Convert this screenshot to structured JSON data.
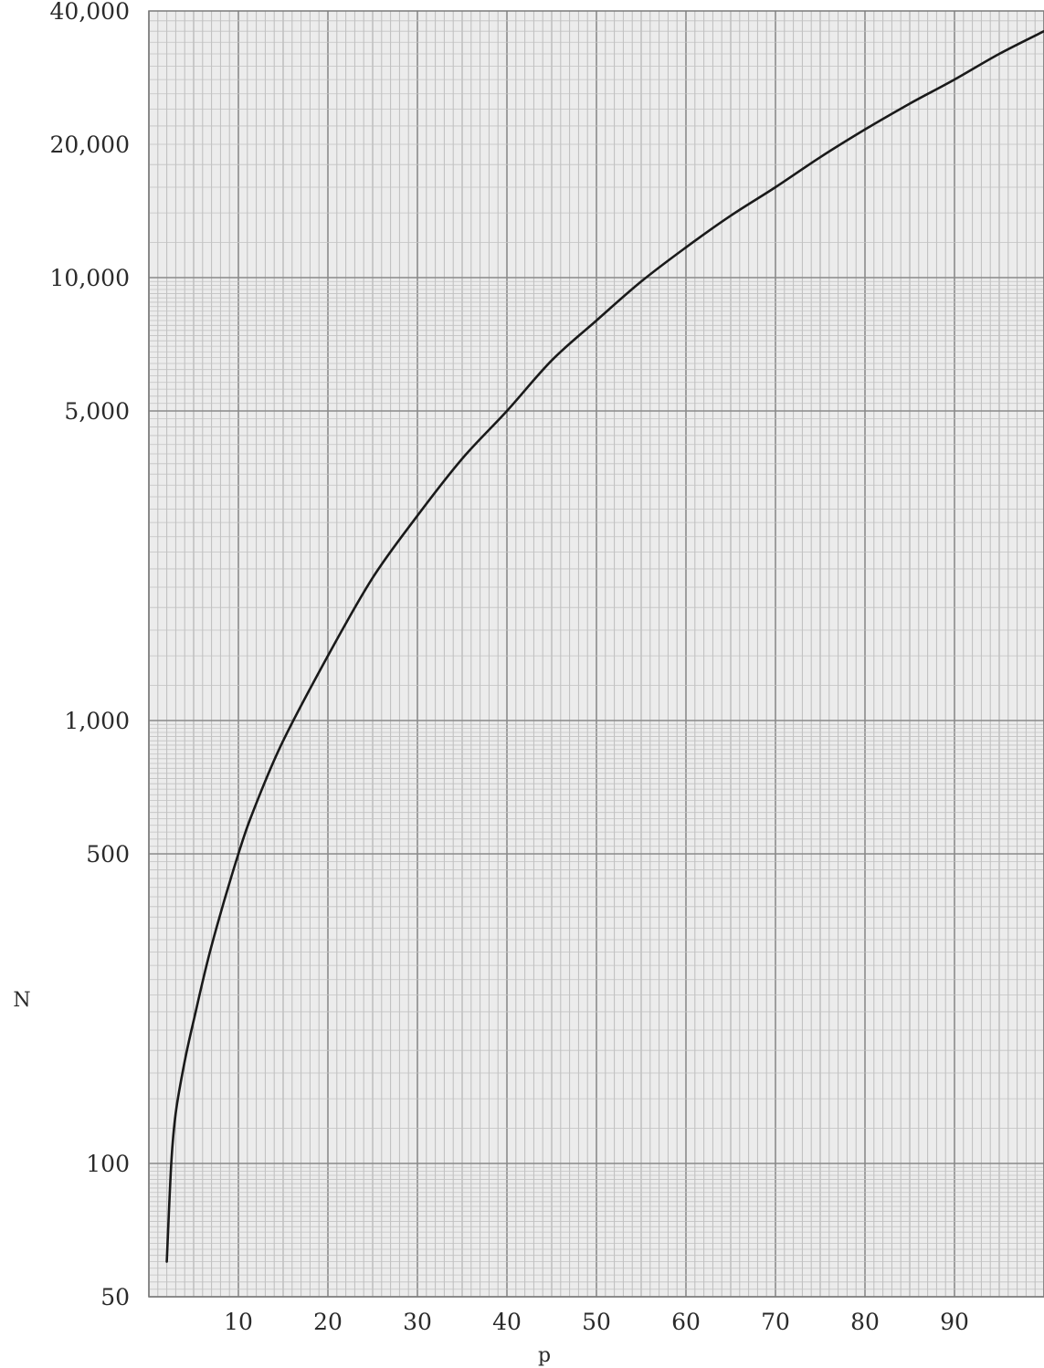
{
  "chart_data": {
    "type": "line",
    "title": "",
    "xlabel": "p",
    "ylabel": "N",
    "xlim": [
      0,
      100
    ],
    "ylim": [
      50,
      40000
    ],
    "y_scale": "log",
    "grid": true,
    "x_ticks": [
      10,
      20,
      30,
      40,
      50,
      60,
      70,
      80,
      90
    ],
    "x_tick_labels": [
      "10",
      "20",
      "30",
      "40",
      "50",
      "60",
      "70",
      "80",
      "90"
    ],
    "y_ticks": [
      50,
      100,
      500,
      1000,
      5000,
      10000,
      20000,
      40000
    ],
    "y_tick_labels": [
      "50",
      "100",
      "500",
      "1,000",
      "5,000",
      "10,000",
      "20,000",
      "40,000"
    ],
    "series": [
      {
        "color": "#1a1a1a",
        "x": [
          2,
          2.5,
          3,
          4,
          5,
          7,
          10,
          12,
          15,
          20,
          25,
          30,
          35,
          40,
          45,
          50,
          55,
          60,
          65,
          70,
          75,
          80,
          85,
          90,
          95,
          100
        ],
        "y": [
          60,
          100,
          130,
          170,
          210,
          310,
          500,
          650,
          900,
          1400,
          2100,
          2900,
          3900,
          5000,
          6500,
          8000,
          9800,
          11700,
          13800,
          16000,
          18700,
          21600,
          24700,
          28000,
          32000,
          36000
        ]
      }
    ]
  }
}
